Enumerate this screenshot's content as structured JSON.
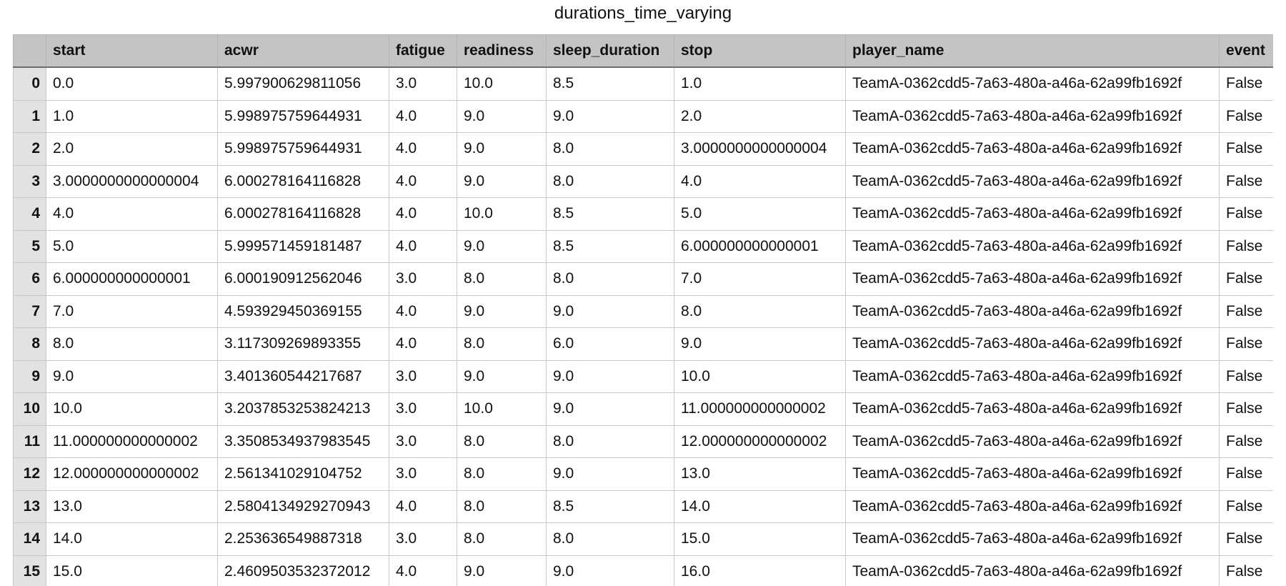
{
  "title": "durations_time_varying",
  "columns": [
    "",
    "start",
    "acwr",
    "fatigue",
    "readiness",
    "sleep_duration",
    "stop",
    "player_name",
    "event"
  ],
  "rows": [
    [
      "0",
      "0.0",
      "5.997900629811056",
      "3.0",
      "10.0",
      "8.5",
      "1.0",
      "TeamA-0362cdd5-7a63-480a-a46a-62a99fb1692f",
      "False"
    ],
    [
      "1",
      "1.0",
      "5.998975759644931",
      "4.0",
      "9.0",
      "9.0",
      "2.0",
      "TeamA-0362cdd5-7a63-480a-a46a-62a99fb1692f",
      "False"
    ],
    [
      "2",
      "2.0",
      "5.998975759644931",
      "4.0",
      "9.0",
      "8.0",
      "3.0000000000000004",
      "TeamA-0362cdd5-7a63-480a-a46a-62a99fb1692f",
      "False"
    ],
    [
      "3",
      "3.0000000000000004",
      "6.000278164116828",
      "4.0",
      "9.0",
      "8.0",
      "4.0",
      "TeamA-0362cdd5-7a63-480a-a46a-62a99fb1692f",
      "False"
    ],
    [
      "4",
      "4.0",
      "6.000278164116828",
      "4.0",
      "10.0",
      "8.5",
      "5.0",
      "TeamA-0362cdd5-7a63-480a-a46a-62a99fb1692f",
      "False"
    ],
    [
      "5",
      "5.0",
      "5.999571459181487",
      "4.0",
      "9.0",
      "8.5",
      "6.000000000000001",
      "TeamA-0362cdd5-7a63-480a-a46a-62a99fb1692f",
      "False"
    ],
    [
      "6",
      "6.000000000000001",
      "6.000190912562046",
      "3.0",
      "8.0",
      "8.0",
      "7.0",
      "TeamA-0362cdd5-7a63-480a-a46a-62a99fb1692f",
      "False"
    ],
    [
      "7",
      "7.0",
      "4.593929450369155",
      "4.0",
      "9.0",
      "9.0",
      "8.0",
      "TeamA-0362cdd5-7a63-480a-a46a-62a99fb1692f",
      "False"
    ],
    [
      "8",
      "8.0",
      "3.117309269893355",
      "4.0",
      "8.0",
      "6.0",
      "9.0",
      "TeamA-0362cdd5-7a63-480a-a46a-62a99fb1692f",
      "False"
    ],
    [
      "9",
      "9.0",
      "3.401360544217687",
      "3.0",
      "9.0",
      "9.0",
      "10.0",
      "TeamA-0362cdd5-7a63-480a-a46a-62a99fb1692f",
      "False"
    ],
    [
      "10",
      "10.0",
      "3.2037853253824213",
      "3.0",
      "10.0",
      "9.0",
      "11.000000000000002",
      "TeamA-0362cdd5-7a63-480a-a46a-62a99fb1692f",
      "False"
    ],
    [
      "11",
      "11.000000000000002",
      "3.3508534937983545",
      "3.0",
      "8.0",
      "8.0",
      "12.000000000000002",
      "TeamA-0362cdd5-7a63-480a-a46a-62a99fb1692f",
      "False"
    ],
    [
      "12",
      "12.000000000000002",
      "2.561341029104752",
      "3.0",
      "8.0",
      "9.0",
      "13.0",
      "TeamA-0362cdd5-7a63-480a-a46a-62a99fb1692f",
      "False"
    ],
    [
      "13",
      "13.0",
      "2.5804134929270943",
      "4.0",
      "8.0",
      "8.5",
      "14.0",
      "TeamA-0362cdd5-7a63-480a-a46a-62a99fb1692f",
      "False"
    ],
    [
      "14",
      "14.0",
      "2.253636549887318",
      "3.0",
      "8.0",
      "8.0",
      "15.0",
      "TeamA-0362cdd5-7a63-480a-a46a-62a99fb1692f",
      "False"
    ],
    [
      "15",
      "15.0",
      "2.4609503532372012",
      "4.0",
      "9.0",
      "9.0",
      "16.0",
      "TeamA-0362cdd5-7a63-480a-a46a-62a99fb1692f",
      "False"
    ]
  ],
  "colors": {
    "header_bg": "#c4c4c4",
    "index_bg": "#e2e2e2",
    "grid_line": "#c8c8c8",
    "text": "#111111"
  }
}
